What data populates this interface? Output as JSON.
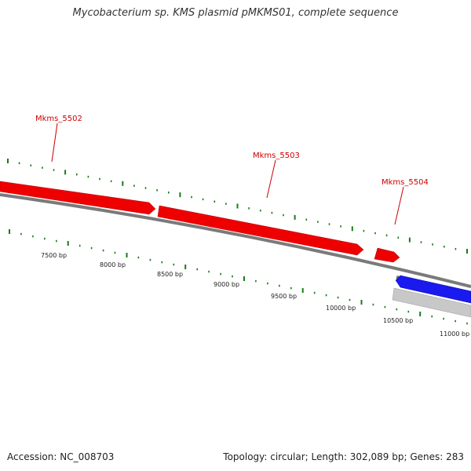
{
  "title": "Mycobacterium sp. KMS plasmid pMKMS01, complete sequence",
  "footer": {
    "accession": "Accession: NC_008703",
    "summary": "Topology: circular; Length: 302,089 bp; Genes: 283"
  },
  "colors": {
    "forward_gene": "#ee0000",
    "reverse_gene": "#1a1aee",
    "other_feature": "#c8c8c8",
    "backbone": "#7a7a7a",
    "ticks": "#1a7a1a",
    "gene_label": "#cc0000"
  },
  "genes": [
    {
      "label": "Mkms_5502",
      "strand": "forward"
    },
    {
      "label": "Mkms_5503",
      "strand": "forward"
    },
    {
      "label": "Mkms_5504",
      "strand": "forward"
    }
  ],
  "scale_labels": [
    "7500 bp",
    "8000 bp",
    "8500 bp",
    "9000 bp",
    "9500 bp",
    "10000 bp",
    "10500 bp",
    "11000 bp"
  ]
}
